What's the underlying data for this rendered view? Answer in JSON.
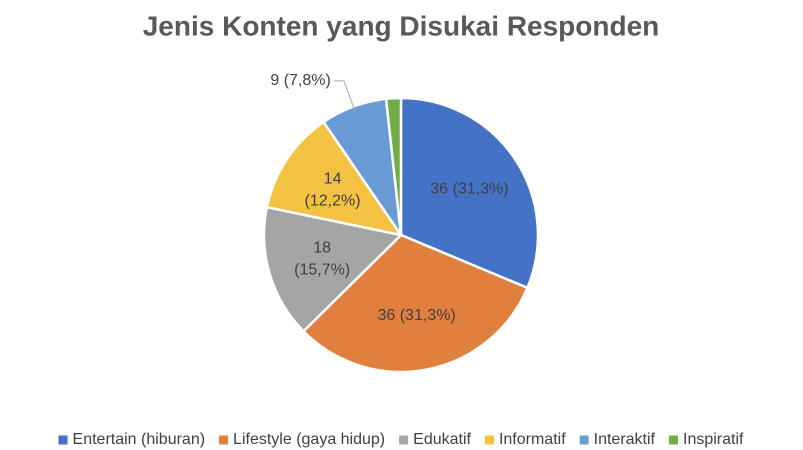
{
  "chart_data": {
    "type": "pie",
    "title": "Jenis Konten yang Disukai Responden",
    "categories": [
      "Entertain (hiburan)",
      "Lifestyle (gaya hidup)",
      "Edukatif",
      "Informatif",
      "Interaktif",
      "Inspiratif"
    ],
    "values": [
      36,
      36,
      18,
      14,
      9,
      2
    ],
    "value_labels": [
      "36 (31,3%)",
      "36 (31,3%)",
      "18 (15,7%)",
      "14 (12,2%)",
      "9 (7,8%)",
      null
    ],
    "colors": [
      "#4472c4",
      "#e07f3e",
      "#a5a5a5",
      "#f4c242",
      "#6a9bd4",
      "#70ad47"
    ],
    "legend": "bottom"
  }
}
